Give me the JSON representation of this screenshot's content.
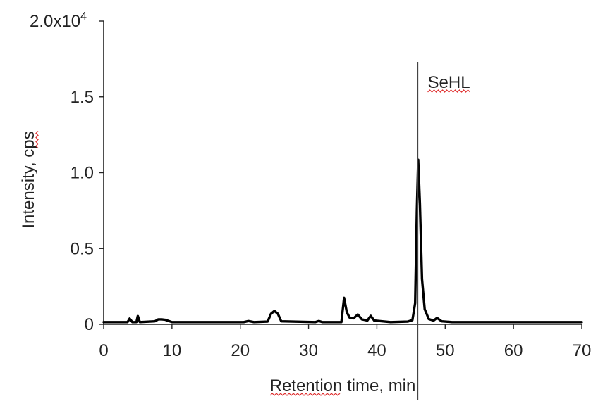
{
  "chart_data": {
    "type": "line",
    "title": "",
    "xlabel": "Retention time, min",
    "ylabel": "Intensity, cps",
    "xlim": [
      0,
      70
    ],
    "ylim": [
      0,
      20000
    ],
    "x_ticks": [
      0,
      10,
      20,
      30,
      40,
      50,
      60,
      70
    ],
    "x_tick_labels": [
      "0",
      "10",
      "20",
      "30",
      "40",
      "50",
      "60",
      "70"
    ],
    "y_ticks": [
      0,
      5000,
      10000,
      15000,
      20000
    ],
    "y_tick_labels": [
      "0",
      "0.5",
      "1.0",
      "1.5",
      "2.0x10"
    ],
    "y_tick_exponent": "4",
    "grid": false,
    "legend": "none",
    "annotation": {
      "label": "SeHL",
      "x": 46
    },
    "series": [
      {
        "color": "#000000",
        "points": [
          [
            0,
            150
          ],
          [
            3.5,
            150
          ],
          [
            3.8,
            380
          ],
          [
            4.2,
            150
          ],
          [
            4.8,
            150
          ],
          [
            5.0,
            550
          ],
          [
            5.3,
            150
          ],
          [
            7.5,
            200
          ],
          [
            8.0,
            330
          ],
          [
            8.5,
            330
          ],
          [
            9.0,
            300
          ],
          [
            10.0,
            150
          ],
          [
            20.5,
            150
          ],
          [
            21.2,
            220
          ],
          [
            22,
            150
          ],
          [
            24.0,
            180
          ],
          [
            24.5,
            700
          ],
          [
            25.0,
            880
          ],
          [
            25.5,
            700
          ],
          [
            26.0,
            200
          ],
          [
            31.0,
            150
          ],
          [
            31.5,
            220
          ],
          [
            32,
            150
          ],
          [
            34.8,
            150
          ],
          [
            35.2,
            1750
          ],
          [
            35.6,
            800
          ],
          [
            36.0,
            450
          ],
          [
            36.6,
            400
          ],
          [
            37.2,
            650
          ],
          [
            37.8,
            330
          ],
          [
            38.6,
            250
          ],
          [
            39.1,
            560
          ],
          [
            39.6,
            250
          ],
          [
            42,
            150
          ],
          [
            44.5,
            180
          ],
          [
            45.2,
            280
          ],
          [
            45.6,
            1400
          ],
          [
            45.85,
            7500
          ],
          [
            46.05,
            10850
          ],
          [
            46.3,
            8000
          ],
          [
            46.6,
            3000
          ],
          [
            47.0,
            1000
          ],
          [
            47.6,
            350
          ],
          [
            48.3,
            250
          ],
          [
            48.8,
            420
          ],
          [
            49.5,
            200
          ],
          [
            51,
            150
          ],
          [
            70,
            150
          ]
        ]
      }
    ]
  }
}
